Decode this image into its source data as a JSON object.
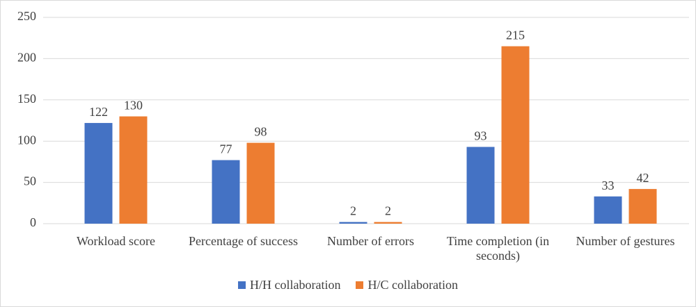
{
  "chart_data": {
    "type": "bar",
    "categories": [
      "Workload score",
      "Percentage of success",
      "Number of errors",
      "Time completion (in seconds)",
      "Number of gestures"
    ],
    "series": [
      {
        "name": "H/H collaboration",
        "color": "#4472c4",
        "values": [
          122,
          77,
          2,
          93,
          33
        ]
      },
      {
        "name": "H/C collaboration",
        "color": "#ed7d31",
        "values": [
          130,
          98,
          2,
          215,
          42
        ]
      }
    ],
    "ylim": [
      0,
      250
    ],
    "yticks": [
      0,
      50,
      100,
      150,
      200,
      250
    ],
    "grid": true,
    "legend": "bottom"
  }
}
